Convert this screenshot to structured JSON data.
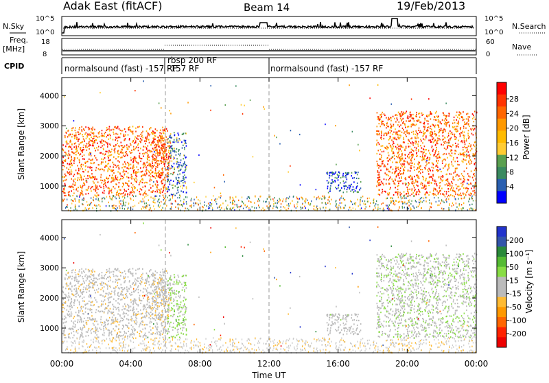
{
  "header": {
    "station": "Adak East (fitACF)",
    "beam": "Beam 14",
    "date": "19/Feb/2013"
  },
  "top_panels": {
    "nsky_label": "N.Sky",
    "nsky_ticks": [
      "10^5",
      "10^0"
    ],
    "nsearch_label": "N.Search",
    "nsearch_ticks": [
      "10^5",
      "10^0"
    ],
    "freq_label": "Freq.",
    "freq_unit": "[MHz]",
    "freq_ticks": [
      "18",
      "8"
    ],
    "nave_label": "Nave",
    "nave_ticks": [
      "60",
      "0"
    ],
    "cpid_label": "CPID",
    "cpid_segments": [
      {
        "label": "normalsound (fast)  -157 RF",
        "start_h": 0,
        "end_h": 6
      },
      {
        "label": "rbsp 200 RF",
        "start_h": 6,
        "end_h": 12
      },
      {
        "label": "normalsound (fast)  -157 RF",
        "start_h": 12,
        "end_h": 24
      }
    ],
    "cpid_extra_label": "-157 RF"
  },
  "power_panel": {
    "ylabel": "Slant Range [km]",
    "colorbar_label": "Power [dB]",
    "colorbar_ticks": [
      "28",
      "24",
      "20",
      "16",
      "12",
      "8",
      "4"
    ],
    "colorbar_colors": [
      "#ff0000",
      "#ff3300",
      "#ff6600",
      "#ff9900",
      "#ffbb00",
      "#ffcc33",
      "#5aa050",
      "#3a8a60",
      "#2a5fb0",
      "#0000ff"
    ]
  },
  "velocity_panel": {
    "ylabel": "Slant Range [km]",
    "colorbar_label": "Velocity [m s⁻¹]",
    "colorbar_ticks": [
      "200",
      "100",
      "50",
      "15",
      "-15",
      "-50",
      "-100",
      "-200"
    ],
    "colorbar_colors": [
      "#2233cc",
      "#3355aa",
      "#2a8a3a",
      "#55bb33",
      "#88dd44",
      "#bbbbbb",
      "#bbbbbb",
      "#ffbb33",
      "#ff9900",
      "#ff6600",
      "#ff2200",
      "#ee0000"
    ]
  },
  "x_axis": {
    "label": "Time UT",
    "ticks": [
      "00:00",
      "04:00",
      "08:00",
      "12:00",
      "16:00",
      "20:00",
      "00:00"
    ]
  },
  "chart_data": {
    "type": "heatmap",
    "title": "Adak East (fitACF)  Beam 14  19/Feb/2013",
    "xlabel": "Time UT",
    "ylabel": "Slant Range [km]",
    "xlim_hours": [
      0,
      24
    ],
    "ylim_km": [
      180,
      4600
    ],
    "yticks_km": [
      1000,
      2000,
      3000,
      4000
    ],
    "series": [
      {
        "name": "Power [dB]",
        "clim": [
          0,
          30
        ]
      },
      {
        "name": "Velocity [m s⁻¹]",
        "clim": [
          -200,
          200
        ]
      }
    ],
    "scatter_regions": [
      {
        "t0": 0.0,
        "t1": 6.1,
        "r0": 700,
        "r1": 3000,
        "power_db": 24,
        "velocity": -10
      },
      {
        "t0": 5.2,
        "t1": 6.3,
        "r0": 1300,
        "r1": 2700,
        "power_db": 26,
        "velocity": -20
      },
      {
        "t0": 6.1,
        "t1": 7.2,
        "r0": 700,
        "r1": 2800,
        "power_db": 8,
        "velocity": 40
      },
      {
        "t0": 15.3,
        "t1": 17.3,
        "r0": 800,
        "r1": 1500,
        "power_db": 6,
        "velocity": 5
      },
      {
        "t0": 18.2,
        "t1": 24.0,
        "r0": 700,
        "r1": 3500,
        "power_db": 24,
        "velocity": 20
      }
    ],
    "ground_scatter_km": [
      200,
      700
    ]
  }
}
